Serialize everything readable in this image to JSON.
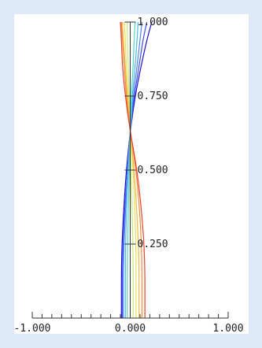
{
  "chart_data": {
    "type": "line",
    "title": "",
    "xlabel": "",
    "ylabel": "",
    "xlim": [
      -1.0,
      1.0
    ],
    "ylim": [
      0.0,
      1.0
    ],
    "x_ticks": [
      "-1.000",
      "0.000",
      "1.000"
    ],
    "y_ticks": [
      "0.250",
      "0.500",
      "0.750",
      "1.000"
    ],
    "y_tick_values": [
      0.25,
      0.5,
      0.75,
      1.0
    ],
    "x_minor_tick_count": 20,
    "grid": false,
    "legend": "none",
    "series": [
      {
        "color": "#1c0fd6",
        "x": [
          -0.09,
          -0.09,
          -0.07,
          -0.04,
          0.0,
          0.05,
          0.11,
          0.17,
          0.22
        ],
        "y": [
          0.0,
          0.2,
          0.35,
          0.5,
          0.63,
          0.75,
          0.85,
          0.94,
          1.0
        ]
      },
      {
        "color": "#3f4fe8",
        "x": [
          -0.08,
          -0.08,
          -0.06,
          -0.03,
          0.0,
          0.04,
          0.09,
          0.13,
          0.17
        ],
        "y": [
          0.0,
          0.2,
          0.35,
          0.5,
          0.63,
          0.75,
          0.85,
          0.94,
          1.0
        ]
      },
      {
        "color": "#4f86f0",
        "x": [
          -0.07,
          -0.07,
          -0.05,
          -0.03,
          0.0,
          0.03,
          0.07,
          0.1,
          0.12
        ],
        "y": [
          0.0,
          0.2,
          0.35,
          0.5,
          0.63,
          0.75,
          0.85,
          0.94,
          1.0
        ]
      },
      {
        "color": "#4fb8ef",
        "x": [
          -0.05,
          -0.05,
          -0.04,
          -0.02,
          0.0,
          0.02,
          0.05,
          0.07,
          0.08
        ],
        "y": [
          0.0,
          0.2,
          0.35,
          0.5,
          0.63,
          0.75,
          0.85,
          0.94,
          1.0
        ]
      },
      {
        "color": "#53d6c8",
        "x": [
          -0.03,
          -0.03,
          -0.02,
          -0.01,
          0.0,
          0.01,
          0.03,
          0.04,
          0.05
        ],
        "y": [
          0.0,
          0.2,
          0.35,
          0.5,
          0.63,
          0.75,
          0.85,
          0.94,
          1.0
        ]
      },
      {
        "color": "#8fe08a",
        "x": [
          0.0,
          0.0,
          0.0,
          0.0,
          0.0,
          0.0,
          0.0,
          0.0,
          0.0
        ],
        "y": [
          0.0,
          0.2,
          0.35,
          0.5,
          0.63,
          0.75,
          0.85,
          0.94,
          1.0
        ]
      },
      {
        "color": "#c9e87a",
        "x": [
          0.03,
          0.03,
          0.02,
          0.01,
          0.0,
          -0.01,
          -0.02,
          -0.03,
          -0.03
        ],
        "y": [
          0.0,
          0.2,
          0.35,
          0.5,
          0.63,
          0.75,
          0.85,
          0.94,
          1.0
        ]
      },
      {
        "color": "#eadf5a",
        "x": [
          0.06,
          0.06,
          0.05,
          0.03,
          0.0,
          -0.02,
          -0.04,
          -0.05,
          -0.06
        ],
        "y": [
          0.0,
          0.2,
          0.35,
          0.5,
          0.63,
          0.75,
          0.85,
          0.94,
          1.0
        ]
      },
      {
        "color": "#f2b84a",
        "x": [
          0.09,
          0.09,
          0.07,
          0.04,
          0.0,
          -0.03,
          -0.05,
          -0.07,
          -0.08
        ],
        "y": [
          0.0,
          0.2,
          0.35,
          0.5,
          0.63,
          0.75,
          0.85,
          0.94,
          1.0
        ]
      },
      {
        "color": "#f08a3a",
        "x": [
          0.12,
          0.12,
          0.1,
          0.06,
          0.0,
          -0.04,
          -0.06,
          -0.08,
          -0.09
        ],
        "y": [
          0.0,
          0.2,
          0.35,
          0.5,
          0.63,
          0.75,
          0.85,
          0.94,
          1.0
        ]
      },
      {
        "color": "#e8422e",
        "x": [
          0.15,
          0.15,
          0.12,
          0.07,
          0.0,
          -0.05,
          -0.08,
          -0.09,
          -0.1
        ],
        "y": [
          0.0,
          0.2,
          0.35,
          0.5,
          0.63,
          0.75,
          0.85,
          0.94,
          1.0
        ]
      }
    ]
  }
}
